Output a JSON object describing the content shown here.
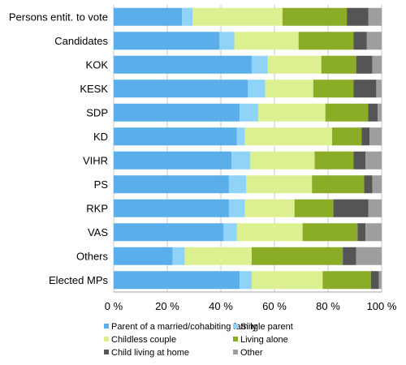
{
  "chart_data": {
    "type": "bar",
    "orientation": "horizontal",
    "stacked": true,
    "title": "",
    "xlabel": "",
    "ylabel": "",
    "xlim": [
      0,
      100
    ],
    "grid": true,
    "legend_position": "bottom",
    "x_ticks": [
      "0 %",
      "20 %",
      "40 %",
      "60 %",
      "80 %",
      "100 %"
    ],
    "categories": [
      "Persons entit. to vote",
      "Candidates",
      "KOK",
      "KESK",
      "SDP",
      "KD",
      "VIHR",
      "PS",
      "RKP",
      "VAS",
      "Others",
      "Elected MPs"
    ],
    "series": [
      {
        "name": "Parent of a married/cohabiting family",
        "color": "#5aafea",
        "values": [
          25.5,
          39.5,
          51.5,
          50,
          47,
          46,
          44,
          43,
          43,
          41,
          22,
          47
        ]
      },
      {
        "name": "Single parent",
        "color": "#8fd3f8",
        "values": [
          4,
          5.5,
          6,
          6.5,
          7,
          3,
          7,
          6.5,
          6,
          5,
          4.5,
          4.5
        ]
      },
      {
        "name": "Childless couple",
        "color": "#ddf091",
        "values": [
          33.5,
          24,
          20,
          18,
          25,
          32.5,
          24,
          24.5,
          18.5,
          24.5,
          25,
          26.5
        ]
      },
      {
        "name": "Living alone",
        "color": "#8aac27",
        "values": [
          24,
          20.5,
          13,
          15,
          16,
          11,
          14.5,
          19.5,
          14.5,
          20.5,
          34,
          18
        ]
      },
      {
        "name": "Child living at home",
        "color": "#555555",
        "values": [
          8,
          5,
          6,
          8.5,
          3.5,
          3,
          4.5,
          3,
          13,
          3,
          5,
          3
        ]
      },
      {
        "name": "Other",
        "color": "#9e9e9e",
        "values": [
          5,
          5.5,
          3.5,
          2,
          1.5,
          4.5,
          6,
          3.5,
          5,
          6,
          9.5,
          1
        ]
      }
    ]
  }
}
